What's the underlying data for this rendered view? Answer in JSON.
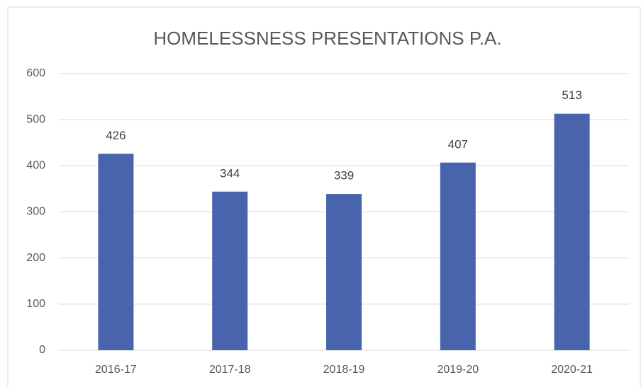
{
  "chart_data": {
    "type": "bar",
    "title": "HOMELESSNESS PRESENTATIONS P.A.",
    "categories": [
      "2016-17",
      "2017-18",
      "2018-19",
      "2019-20",
      "2020-21"
    ],
    "values": [
      426,
      344,
      339,
      407,
      513
    ],
    "color": "#4864ac",
    "ylim": [
      0,
      600
    ],
    "yticks": [
      0,
      100,
      200,
      300,
      400,
      500,
      600
    ],
    "grid": true
  }
}
